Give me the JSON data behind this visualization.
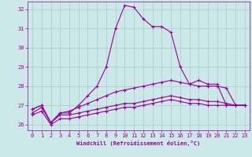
{
  "xlabel": "Windchill (Refroidissement éolien,°C)",
  "background_color": "#cce8e8",
  "grid_color": "#aacccc",
  "line_color": "#990099",
  "hours": [
    0,
    1,
    2,
    3,
    4,
    5,
    6,
    7,
    8,
    9,
    10,
    11,
    12,
    13,
    14,
    15,
    16,
    17,
    18,
    19,
    20,
    21,
    22,
    23
  ],
  "series": [
    [
      26.8,
      27.0,
      26.1,
      26.6,
      26.6,
      27.0,
      27.5,
      28.0,
      29.0,
      31.0,
      32.2,
      32.1,
      31.5,
      31.1,
      31.1,
      30.8,
      29.0,
      28.1,
      28.3,
      28.1,
      28.1,
      27.0,
      27.0,
      27.0
    ],
    [
      26.8,
      27.0,
      26.1,
      26.6,
      26.7,
      26.9,
      27.1,
      27.3,
      27.5,
      27.7,
      27.8,
      27.9,
      28.0,
      28.1,
      28.2,
      28.3,
      28.2,
      28.1,
      28.0,
      28.0,
      28.0,
      27.9,
      27.0,
      27.0
    ],
    [
      26.6,
      26.9,
      26.1,
      26.5,
      26.5,
      26.6,
      26.7,
      26.8,
      26.9,
      27.0,
      27.1,
      27.1,
      27.2,
      27.3,
      27.4,
      27.5,
      27.4,
      27.3,
      27.3,
      27.2,
      27.2,
      27.1,
      27.0,
      27.0
    ],
    [
      26.5,
      26.7,
      26.0,
      26.3,
      26.3,
      26.4,
      26.5,
      26.6,
      26.7,
      26.8,
      26.9,
      26.9,
      27.0,
      27.1,
      27.2,
      27.3,
      27.2,
      27.1,
      27.1,
      27.0,
      27.0,
      27.0,
      27.0,
      27.0
    ]
  ],
  "ylim": [
    25.7,
    32.4
  ],
  "xlim": [
    -0.5,
    23.5
  ],
  "yticks": [
    26,
    27,
    28,
    29,
    30,
    31,
    32
  ],
  "xticks": [
    0,
    1,
    2,
    3,
    4,
    5,
    6,
    7,
    8,
    9,
    10,
    11,
    12,
    13,
    14,
    15,
    16,
    17,
    18,
    19,
    20,
    21,
    22,
    23
  ],
  "marker": "+",
  "markersize": 3,
  "linewidth": 0.8,
  "tick_fontsize": 5,
  "xlabel_fontsize": 5
}
